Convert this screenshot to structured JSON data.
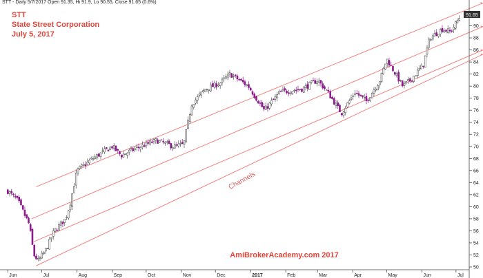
{
  "header": {
    "info": "STT - Daily 5/7/2017 Open 91.35, Hi 91.9, Lo 90.55, Close 91.65 (0.6%)",
    "symbol": "STT",
    "company": "State Street Corporation",
    "date": "July 5, 2017"
  },
  "annotations": {
    "channels": "Channels",
    "watermark": "AmiBrokerAcademy.com  2017",
    "price_tag": "91.65"
  },
  "colors": {
    "up_candle": "#555555",
    "down_candle": "#8b1a8b",
    "channel_line": "#f08080",
    "title": "#e0453a",
    "price_tag_bg": "#333333"
  },
  "chart_data": {
    "type": "candlestick",
    "x_tick_labels": [
      "Jun",
      "Jul",
      "Aug",
      "Sep",
      "Oct",
      "Nov",
      "Dec",
      "2017",
      "Feb",
      "Mar",
      "Apr",
      "May",
      "Jun",
      "Jul"
    ],
    "y_tick_labels": [
      "50",
      "52",
      "54",
      "56",
      "58",
      "60",
      "62",
      "64",
      "66",
      "68",
      "70",
      "72",
      "74",
      "76",
      "78",
      "80",
      "82",
      "84",
      "86",
      "88",
      "90",
      "92"
    ],
    "ylim": [
      49.5,
      92.5
    ],
    "grid": false,
    "last_close": 91.65,
    "path_points": [
      {
        "date": "2016-06-01",
        "close": 62.6
      },
      {
        "date": "2016-06-10",
        "close": 61.0
      },
      {
        "date": "2016-06-20",
        "close": 57.0
      },
      {
        "date": "2016-06-24",
        "close": 52.0
      },
      {
        "date": "2016-06-28",
        "close": 51.0
      },
      {
        "date": "2016-07-05",
        "close": 53.0
      },
      {
        "date": "2016-07-12",
        "close": 56.0
      },
      {
        "date": "2016-07-22",
        "close": 58.0
      },
      {
        "date": "2016-07-26",
        "close": 60.5
      },
      {
        "date": "2016-08-01",
        "close": 66.0
      },
      {
        "date": "2016-08-15",
        "close": 68.0
      },
      {
        "date": "2016-09-01",
        "close": 70.0
      },
      {
        "date": "2016-09-09",
        "close": 68.5
      },
      {
        "date": "2016-09-20",
        "close": 69.5
      },
      {
        "date": "2016-10-10",
        "close": 71.0
      },
      {
        "date": "2016-10-25",
        "close": 70.0
      },
      {
        "date": "2016-11-03",
        "close": 70.3
      },
      {
        "date": "2016-11-10",
        "close": 77.0
      },
      {
        "date": "2016-11-22",
        "close": 79.5
      },
      {
        "date": "2016-12-05",
        "close": 80.5
      },
      {
        "date": "2016-12-14",
        "close": 82.0
      },
      {
        "date": "2016-12-30",
        "close": 80.0
      },
      {
        "date": "2017-01-13",
        "close": 76.0
      },
      {
        "date": "2017-01-27",
        "close": 79.0
      },
      {
        "date": "2017-02-15",
        "close": 79.5
      },
      {
        "date": "2017-03-01",
        "close": 81.0
      },
      {
        "date": "2017-03-10",
        "close": 79.0
      },
      {
        "date": "2017-03-22",
        "close": 75.5
      },
      {
        "date": "2017-04-03",
        "close": 79.0
      },
      {
        "date": "2017-04-13",
        "close": 77.5
      },
      {
        "date": "2017-04-25",
        "close": 81.0
      },
      {
        "date": "2017-05-01",
        "close": 84.5
      },
      {
        "date": "2017-05-15",
        "close": 80.0
      },
      {
        "date": "2017-05-22",
        "close": 81.0
      },
      {
        "date": "2017-06-02",
        "close": 83.5
      },
      {
        "date": "2017-06-08",
        "close": 88.0
      },
      {
        "date": "2017-06-19",
        "close": 89.5
      },
      {
        "date": "2017-06-26",
        "close": 89.0
      },
      {
        "date": "2017-07-05",
        "close": 91.65
      }
    ],
    "channel_lines": [
      {
        "start": {
          "date": "2016-06-26",
          "price": 63.3
        },
        "end": {
          "date": "2017-07-25",
          "price": 93.8
        }
      },
      {
        "start": {
          "date": "2016-06-22",
          "price": 58.0
        },
        "end": {
          "date": "2017-07-25",
          "price": 89.9
        }
      },
      {
        "start": {
          "date": "2016-06-24",
          "price": 54.2
        },
        "end": {
          "date": "2017-07-25",
          "price": 86.0
        }
      },
      {
        "start": {
          "date": "2016-06-26",
          "price": 50.2
        },
        "end": {
          "date": "2017-07-25",
          "price": 85.3
        }
      }
    ]
  }
}
